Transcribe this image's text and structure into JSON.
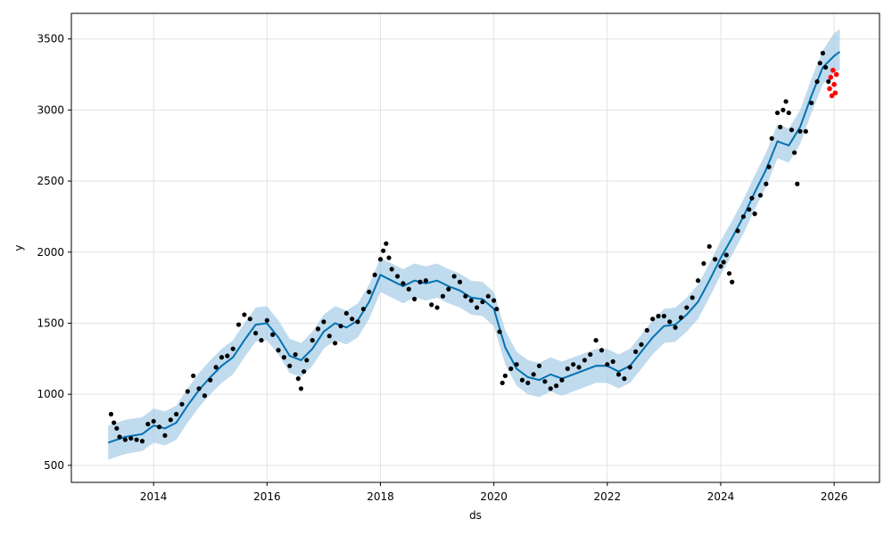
{
  "chart_data": {
    "type": "line",
    "xlabel": "ds",
    "ylabel": "y",
    "xlim": [
      2012.55,
      2026.8
    ],
    "ylim": [
      380,
      3680
    ],
    "x_ticks": [
      2014,
      2016,
      2018,
      2020,
      2022,
      2024,
      2026
    ],
    "x_tick_labels": [
      "2014",
      "2016",
      "2018",
      "2020",
      "2022",
      "2024",
      "2026"
    ],
    "y_ticks": [
      500,
      1000,
      1500,
      2000,
      2500,
      3000,
      3500
    ],
    "y_tick_labels": [
      "500",
      "1000",
      "1500",
      "2000",
      "2500",
      "3000",
      "3500"
    ],
    "grid": true,
    "legend": "none",
    "colors": {
      "forecast": "#0072B2",
      "band": "#9ec8e4",
      "observed": "#000000",
      "test": "#ff0000"
    },
    "series": [
      {
        "role": "observed",
        "marker": "point",
        "x": [
          2013.25,
          2013.3,
          2013.35,
          2013.4,
          2013.5,
          2013.6,
          2013.7,
          2013.8,
          2013.9,
          2014.0,
          2014.1,
          2014.2,
          2014.3,
          2014.4,
          2014.5,
          2014.6,
          2014.7,
          2014.8,
          2014.9,
          2015.0,
          2015.1,
          2015.2,
          2015.3,
          2015.4,
          2015.5,
          2015.6,
          2015.7,
          2015.8,
          2015.9,
          2016.0,
          2016.1,
          2016.2,
          2016.3,
          2016.4,
          2016.5,
          2016.55,
          2016.6,
          2016.65,
          2016.7,
          2016.8,
          2016.9,
          2017.0,
          2017.1,
          2017.2,
          2017.3,
          2017.4,
          2017.5,
          2017.6,
          2017.7,
          2017.8,
          2017.9,
          2018.0,
          2018.05,
          2018.1,
          2018.15,
          2018.2,
          2018.3,
          2018.4,
          2018.5,
          2018.6,
          2018.7,
          2018.8,
          2018.9,
          2019.0,
          2019.1,
          2019.2,
          2019.3,
          2019.4,
          2019.5,
          2019.6,
          2019.7,
          2019.8,
          2019.9,
          2020.0,
          2020.05,
          2020.1,
          2020.15,
          2020.2,
          2020.3,
          2020.4,
          2020.5,
          2020.6,
          2020.7,
          2020.8,
          2020.9,
          2021.0,
          2021.1,
          2021.2,
          2021.3,
          2021.4,
          2021.5,
          2021.6,
          2021.7,
          2021.8,
          2021.9,
          2022.0,
          2022.1,
          2022.2,
          2022.3,
          2022.4,
          2022.5,
          2022.6,
          2022.7,
          2022.8,
          2022.9,
          2023.0,
          2023.1,
          2023.2,
          2023.3,
          2023.4,
          2023.5,
          2023.6,
          2023.7,
          2023.8,
          2023.9,
          2024.0,
          2024.05,
          2024.1,
          2024.15,
          2024.2,
          2024.3,
          2024.4,
          2024.5,
          2024.55,
          2024.6,
          2024.7,
          2024.8,
          2024.85,
          2024.9,
          2025.0,
          2025.05,
          2025.1,
          2025.15,
          2025.2,
          2025.25,
          2025.3,
          2025.35,
          2025.4,
          2025.5,
          2025.6,
          2025.7,
          2025.75,
          2025.8,
          2025.85,
          2025.9
        ],
        "y": [
          860,
          800,
          760,
          700,
          680,
          690,
          680,
          670,
          790,
          810,
          770,
          710,
          820,
          860,
          930,
          1020,
          1130,
          1040,
          990,
          1100,
          1190,
          1260,
          1270,
          1320,
          1490,
          1560,
          1530,
          1430,
          1380,
          1520,
          1420,
          1310,
          1260,
          1200,
          1280,
          1110,
          1040,
          1160,
          1240,
          1380,
          1460,
          1510,
          1410,
          1360,
          1480,
          1570,
          1530,
          1510,
          1600,
          1720,
          1840,
          1950,
          2010,
          2060,
          1960,
          1880,
          1830,
          1780,
          1740,
          1670,
          1790,
          1800,
          1630,
          1610,
          1690,
          1740,
          1830,
          1790,
          1690,
          1660,
          1610,
          1650,
          1690,
          1660,
          1600,
          1440,
          1080,
          1130,
          1180,
          1210,
          1100,
          1080,
          1140,
          1200,
          1090,
          1040,
          1060,
          1100,
          1180,
          1210,
          1190,
          1240,
          1280,
          1380,
          1310,
          1210,
          1230,
          1140,
          1110,
          1190,
          1300,
          1350,
          1450,
          1530,
          1550,
          1550,
          1510,
          1470,
          1540,
          1610,
          1680,
          1800,
          1920,
          2040,
          1950,
          1900,
          1930,
          1980,
          1850,
          1790,
          2150,
          2250,
          2300,
          2380,
          2270,
          2400,
          2480,
          2600,
          2800,
          2980,
          2880,
          3000,
          3060,
          2980,
          2860,
          2700,
          2480,
          2850,
          2850,
          3050,
          3200,
          3330,
          3400,
          3300,
          3200
        ]
      },
      {
        "role": "test",
        "marker": "point",
        "x": [
          2025.92,
          2025.94,
          2025.96,
          2025.98,
          2026.0,
          2026.02,
          2026.04
        ],
        "y": [
          3150,
          3230,
          3100,
          3280,
          3180,
          3120,
          3250
        ]
      },
      {
        "role": "forecast",
        "marker": "line",
        "x": [
          2013.2,
          2013.5,
          2013.8,
          2014.0,
          2014.2,
          2014.4,
          2014.6,
          2014.8,
          2015.0,
          2015.2,
          2015.4,
          2015.6,
          2015.8,
          2016.0,
          2016.2,
          2016.4,
          2016.6,
          2016.8,
          2017.0,
          2017.2,
          2017.4,
          2017.6,
          2017.8,
          2018.0,
          2018.2,
          2018.4,
          2018.6,
          2018.8,
          2019.0,
          2019.2,
          2019.4,
          2019.6,
          2019.8,
          2020.0,
          2020.2,
          2020.4,
          2020.6,
          2020.8,
          2021.0,
          2021.2,
          2021.4,
          2021.6,
          2021.8,
          2022.0,
          2022.2,
          2022.4,
          2022.6,
          2022.8,
          2023.0,
          2023.2,
          2023.4,
          2023.6,
          2023.8,
          2024.0,
          2024.2,
          2024.4,
          2024.6,
          2024.8,
          2025.0,
          2025.2,
          2025.4,
          2025.6,
          2025.8,
          2026.0,
          2026.1
        ],
        "y": [
          660,
          700,
          720,
          780,
          760,
          800,
          920,
          1030,
          1120,
          1200,
          1260,
          1380,
          1490,
          1500,
          1400,
          1270,
          1240,
          1320,
          1440,
          1500,
          1470,
          1520,
          1650,
          1840,
          1800,
          1760,
          1800,
          1780,
          1800,
          1760,
          1730,
          1680,
          1670,
          1600,
          1330,
          1180,
          1120,
          1100,
          1140,
          1110,
          1140,
          1170,
          1200,
          1200,
          1160,
          1200,
          1300,
          1400,
          1480,
          1490,
          1560,
          1650,
          1800,
          1960,
          2100,
          2250,
          2420,
          2580,
          2780,
          2750,
          2880,
          3100,
          3300,
          3380,
          3410
        ]
      }
    ],
    "band": {
      "role": "uncertainty",
      "x": [
        2013.2,
        2013.5,
        2013.8,
        2014.0,
        2014.2,
        2014.4,
        2014.6,
        2014.8,
        2015.0,
        2015.2,
        2015.4,
        2015.6,
        2015.8,
        2016.0,
        2016.2,
        2016.4,
        2016.6,
        2016.8,
        2017.0,
        2017.2,
        2017.4,
        2017.6,
        2017.8,
        2018.0,
        2018.2,
        2018.4,
        2018.6,
        2018.8,
        2019.0,
        2019.2,
        2019.4,
        2019.6,
        2019.8,
        2020.0,
        2020.2,
        2020.4,
        2020.6,
        2020.8,
        2021.0,
        2021.2,
        2021.4,
        2021.6,
        2021.8,
        2022.0,
        2022.2,
        2022.4,
        2022.6,
        2022.8,
        2023.0,
        2023.2,
        2023.4,
        2023.6,
        2023.8,
        2024.0,
        2024.2,
        2024.4,
        2024.6,
        2024.8,
        2025.0,
        2025.2,
        2025.4,
        2025.6,
        2025.8,
        2026.0,
        2026.1
      ],
      "lower": [
        540,
        580,
        600,
        660,
        640,
        680,
        800,
        910,
        1000,
        1080,
        1140,
        1260,
        1370,
        1380,
        1280,
        1150,
        1120,
        1200,
        1320,
        1380,
        1350,
        1400,
        1530,
        1720,
        1680,
        1640,
        1680,
        1660,
        1680,
        1640,
        1610,
        1560,
        1550,
        1480,
        1210,
        1060,
        1000,
        980,
        1020,
        990,
        1020,
        1050,
        1080,
        1080,
        1040,
        1080,
        1180,
        1280,
        1360,
        1370,
        1440,
        1530,
        1680,
        1840,
        1980,
        2130,
        2300,
        2460,
        2660,
        2630,
        2760,
        2980,
        3180,
        3260,
        3280
      ],
      "upper": [
        780,
        820,
        840,
        900,
        880,
        920,
        1040,
        1150,
        1240,
        1320,
        1380,
        1500,
        1610,
        1620,
        1520,
        1390,
        1360,
        1440,
        1560,
        1620,
        1590,
        1640,
        1770,
        1960,
        1920,
        1880,
        1920,
        1900,
        1920,
        1880,
        1850,
        1800,
        1790,
        1720,
        1450,
        1300,
        1240,
        1220,
        1260,
        1230,
        1260,
        1290,
        1320,
        1320,
        1280,
        1320,
        1420,
        1520,
        1600,
        1610,
        1680,
        1770,
        1920,
        2080,
        2220,
        2370,
        2540,
        2700,
        2900,
        2870,
        3000,
        3220,
        3420,
        3540,
        3570
      ]
    }
  }
}
